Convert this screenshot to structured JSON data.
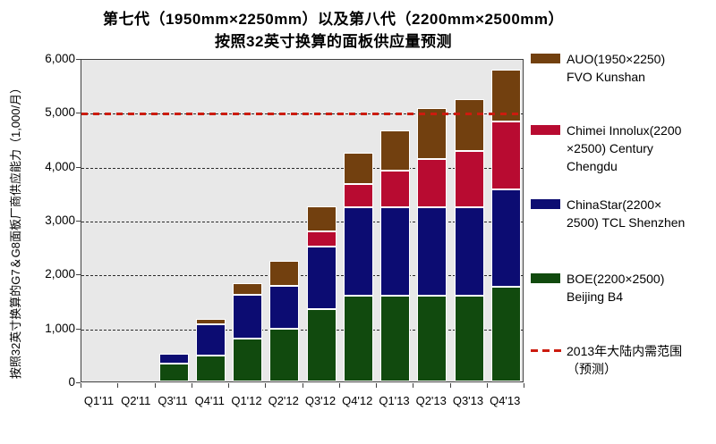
{
  "title": {
    "line1": "第七代（1950mm×2250mm）以及第八代（2200mm×2500mm）",
    "line2": "按照32英寸换算的面板供应量预测"
  },
  "y_axis": {
    "label": "按照32英寸换算的G7＆G8面板厂商供应能力（1,000/月）",
    "tick_labels": [
      "0",
      "1,000",
      "2,000",
      "3,000",
      "4,000",
      "5,000",
      "6,000"
    ]
  },
  "x_axis": {
    "tick_labels": [
      "Q1'11",
      "Q2'11",
      "Q3'11",
      "Q4'11",
      "Q1'12",
      "Q2'12",
      "Q3'12",
      "Q4'12",
      "Q1'13",
      "Q2'13",
      "Q3'13",
      "Q4'13"
    ]
  },
  "legend": {
    "items": [
      {
        "id": "auo",
        "swatch": "brown-box",
        "color": "#72400f",
        "lines": [
          "AUO(1950×2250)",
          "FVO Kunshan"
        ]
      },
      {
        "id": "chimei-innolux",
        "swatch": "crimson-box",
        "color": "#b80b31",
        "lines": [
          "Chimei Innolux(2200",
          "×2500) Century",
          "Chengdu"
        ]
      },
      {
        "id": "chinastar",
        "swatch": "navy-box",
        "color": "#0c0c72",
        "lines": [
          "ChinaStar(2200×",
          "2500) TCL Shenzhen"
        ]
      },
      {
        "id": "boe",
        "swatch": "green-box",
        "color": "#114a0e",
        "lines": [
          "BOE(2200×2500)",
          "Beijing B4"
        ]
      },
      {
        "id": "demand-line",
        "swatch": "red-dashed-line",
        "color": "#cc1b0e",
        "lines": [
          "2013年大陆内需范围",
          "（预测）"
        ]
      }
    ]
  },
  "chart_data": {
    "type": "bar",
    "stacked": true,
    "title": "第七代（1950mm×2250mm）以及第八代（2200mm×2500mm）按照32英寸换算的面板供应量预测",
    "ylabel": "按照32英寸换算的G7＆G8面板厂商供应能力（1,000/月）",
    "xlabel": "",
    "ylim": [
      0,
      6000
    ],
    "yticks": [
      0,
      1000,
      2000,
      3000,
      4000,
      5000,
      6000
    ],
    "grid": "dashed-horizontal",
    "legend_position": "right",
    "categories": [
      "Q1'11",
      "Q2'11",
      "Q3'11",
      "Q4'11",
      "Q1'12",
      "Q2'12",
      "Q3'12",
      "Q4'12",
      "Q1'13",
      "Q2'13",
      "Q3'13",
      "Q4'13"
    ],
    "series": [
      {
        "name": "BOE(2200×2500) Beijing B4",
        "color": "#114a0e",
        "values": [
          0,
          0,
          330,
          480,
          790,
          980,
          1340,
          1590,
          1590,
          1590,
          1590,
          1760
        ]
      },
      {
        "name": "ChinaStar(2200×2500) TCL Shenzhen",
        "color": "#0c0c72",
        "values": [
          0,
          0,
          180,
          580,
          810,
          800,
          1160,
          1650,
          1650,
          1650,
          1650,
          1810
        ]
      },
      {
        "name": "Chimei Innolux(2200×2500) Century Chengdu",
        "color": "#b80b31",
        "values": [
          0,
          0,
          0,
          0,
          0,
          0,
          280,
          430,
          680,
          880,
          1040,
          1260
        ]
      },
      {
        "name": "AUO(1950×2250) FVO Kunshan",
        "color": "#72400f",
        "values": [
          0,
          0,
          0,
          100,
          230,
          460,
          470,
          580,
          730,
          960,
          960,
          960
        ]
      }
    ],
    "reference_line": {
      "label": "2013年大陆内需范围（预测）",
      "value": 5000,
      "style": "red-dashed",
      "color": "#cc1b0e"
    }
  }
}
